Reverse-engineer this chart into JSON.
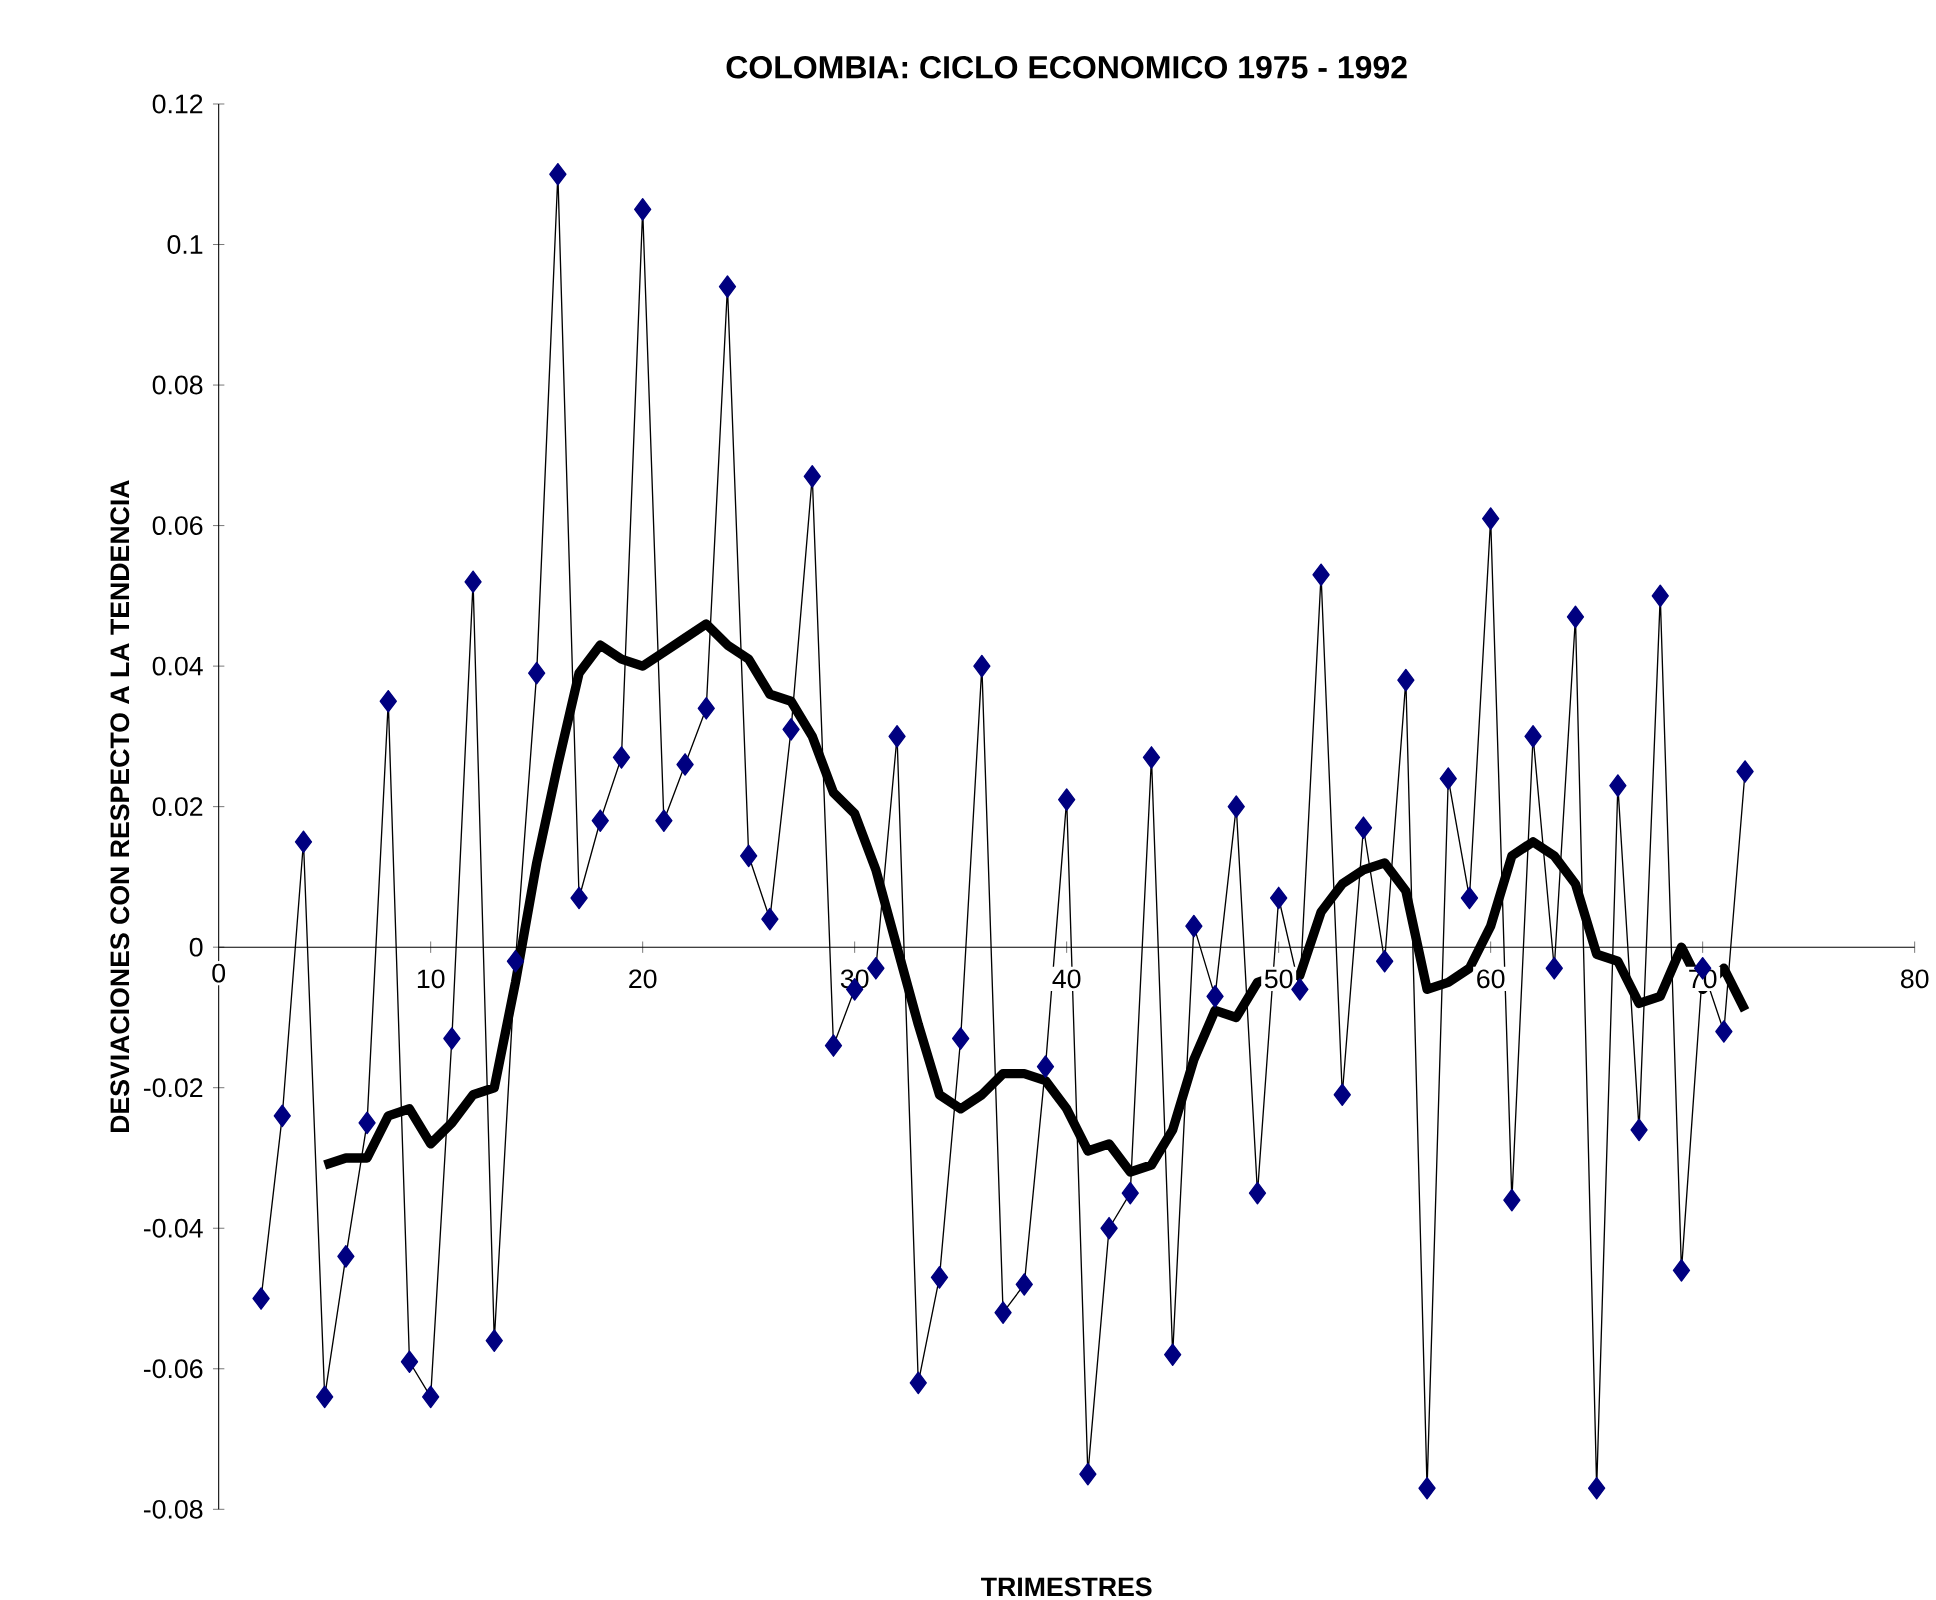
{
  "chart_data": {
    "type": "line",
    "title": "COLOMBIA: CICLO ECONOMICO 1975 - 1992",
    "xlabel": "TRIMESTRES",
    "ylabel": "DESVIACIONES CON RESPECTO A LA TENDENCIA",
    "xlim": [
      0,
      80
    ],
    "xticks": [
      0,
      10,
      20,
      30,
      40,
      50,
      60,
      70,
      80
    ],
    "ylim": [
      -0.08,
      0.12
    ],
    "yticks": [
      -0.08,
      -0.06,
      -0.04,
      -0.02,
      0,
      0.02,
      0.04,
      0.06,
      0.08,
      0.1,
      0.12
    ],
    "grid": false,
    "series": [
      {
        "color": "#000080",
        "marker": "diamond",
        "x": [
          2,
          3,
          4,
          5,
          6,
          7,
          8,
          9,
          10,
          11,
          12,
          13,
          14,
          15,
          16,
          17,
          18,
          19,
          20,
          21,
          22,
          23,
          24,
          25,
          26,
          27,
          28,
          29,
          30,
          31,
          32,
          33,
          34,
          35,
          36,
          37,
          38,
          39,
          40,
          41,
          42,
          43,
          44,
          45,
          46,
          47,
          48,
          49,
          50,
          51,
          52,
          53,
          54,
          55,
          56,
          57,
          58,
          59,
          60,
          61,
          62,
          63,
          64,
          65,
          66,
          67,
          68,
          69,
          70,
          71,
          72
        ],
        "values": [
          -0.05,
          -0.024,
          0.015,
          -0.064,
          -0.044,
          -0.025,
          0.035,
          -0.059,
          -0.064,
          -0.013,
          0.052,
          -0.056,
          -0.002,
          0.039,
          0.11,
          0.007,
          0.018,
          0.027,
          0.105,
          0.018,
          0.026,
          0.034,
          0.094,
          0.013,
          0.004,
          0.031,
          0.067,
          -0.014,
          -0.006,
          -0.003,
          0.03,
          -0.062,
          -0.047,
          -0.013,
          0.04,
          -0.052,
          -0.048,
          -0.017,
          0.021,
          -0.075,
          -0.04,
          -0.035,
          0.027,
          -0.058,
          0.003,
          -0.007,
          0.02,
          -0.035,
          0.007,
          -0.006,
          0.053,
          -0.021,
          0.017,
          -0.002,
          0.038,
          -0.077,
          0.024,
          0.007,
          0.061,
          -0.036,
          0.03,
          -0.003,
          0.047,
          -0.077,
          0.023,
          -0.026,
          0.05,
          -0.046,
          -0.003,
          -0.012,
          0.025
        ]
      },
      {
        "color": "#000000",
        "marker": "none",
        "x": [
          5,
          6,
          7,
          8,
          9,
          10,
          11,
          12,
          13,
          14,
          15,
          16,
          17,
          18,
          19,
          20,
          21,
          22,
          23,
          24,
          25,
          26,
          27,
          28,
          29,
          30,
          31,
          32,
          33,
          34,
          35,
          36,
          37,
          38,
          39,
          40,
          41,
          42,
          43,
          44,
          45,
          46,
          47,
          48,
          49,
          50,
          51,
          52,
          53,
          54,
          55,
          56,
          57,
          58,
          59,
          60,
          61,
          62,
          63,
          64,
          65,
          66,
          67,
          68,
          69,
          70,
          71,
          72
        ],
        "values": [
          -0.031,
          -0.03,
          -0.03,
          -0.024,
          -0.023,
          -0.028,
          -0.025,
          -0.021,
          -0.02,
          -0.005,
          0.012,
          0.026,
          0.039,
          0.043,
          0.041,
          0.04,
          0.042,
          0.044,
          0.046,
          0.043,
          0.041,
          0.036,
          0.035,
          0.03,
          0.022,
          0.019,
          0.011,
          0.0,
          -0.011,
          -0.021,
          -0.023,
          -0.021,
          -0.018,
          -0.018,
          -0.019,
          -0.023,
          -0.029,
          -0.028,
          -0.032,
          -0.031,
          -0.026,
          -0.016,
          -0.009,
          -0.01,
          -0.005,
          -0.004,
          -0.004,
          0.005,
          0.009,
          0.011,
          0.012,
          0.008,
          -0.006,
          -0.005,
          -0.003,
          0.003,
          0.013,
          0.015,
          0.013,
          0.009,
          -0.001,
          -0.002,
          -0.008,
          -0.007,
          0.0,
          -0.006,
          -0.003,
          -0.009
        ]
      }
    ]
  }
}
